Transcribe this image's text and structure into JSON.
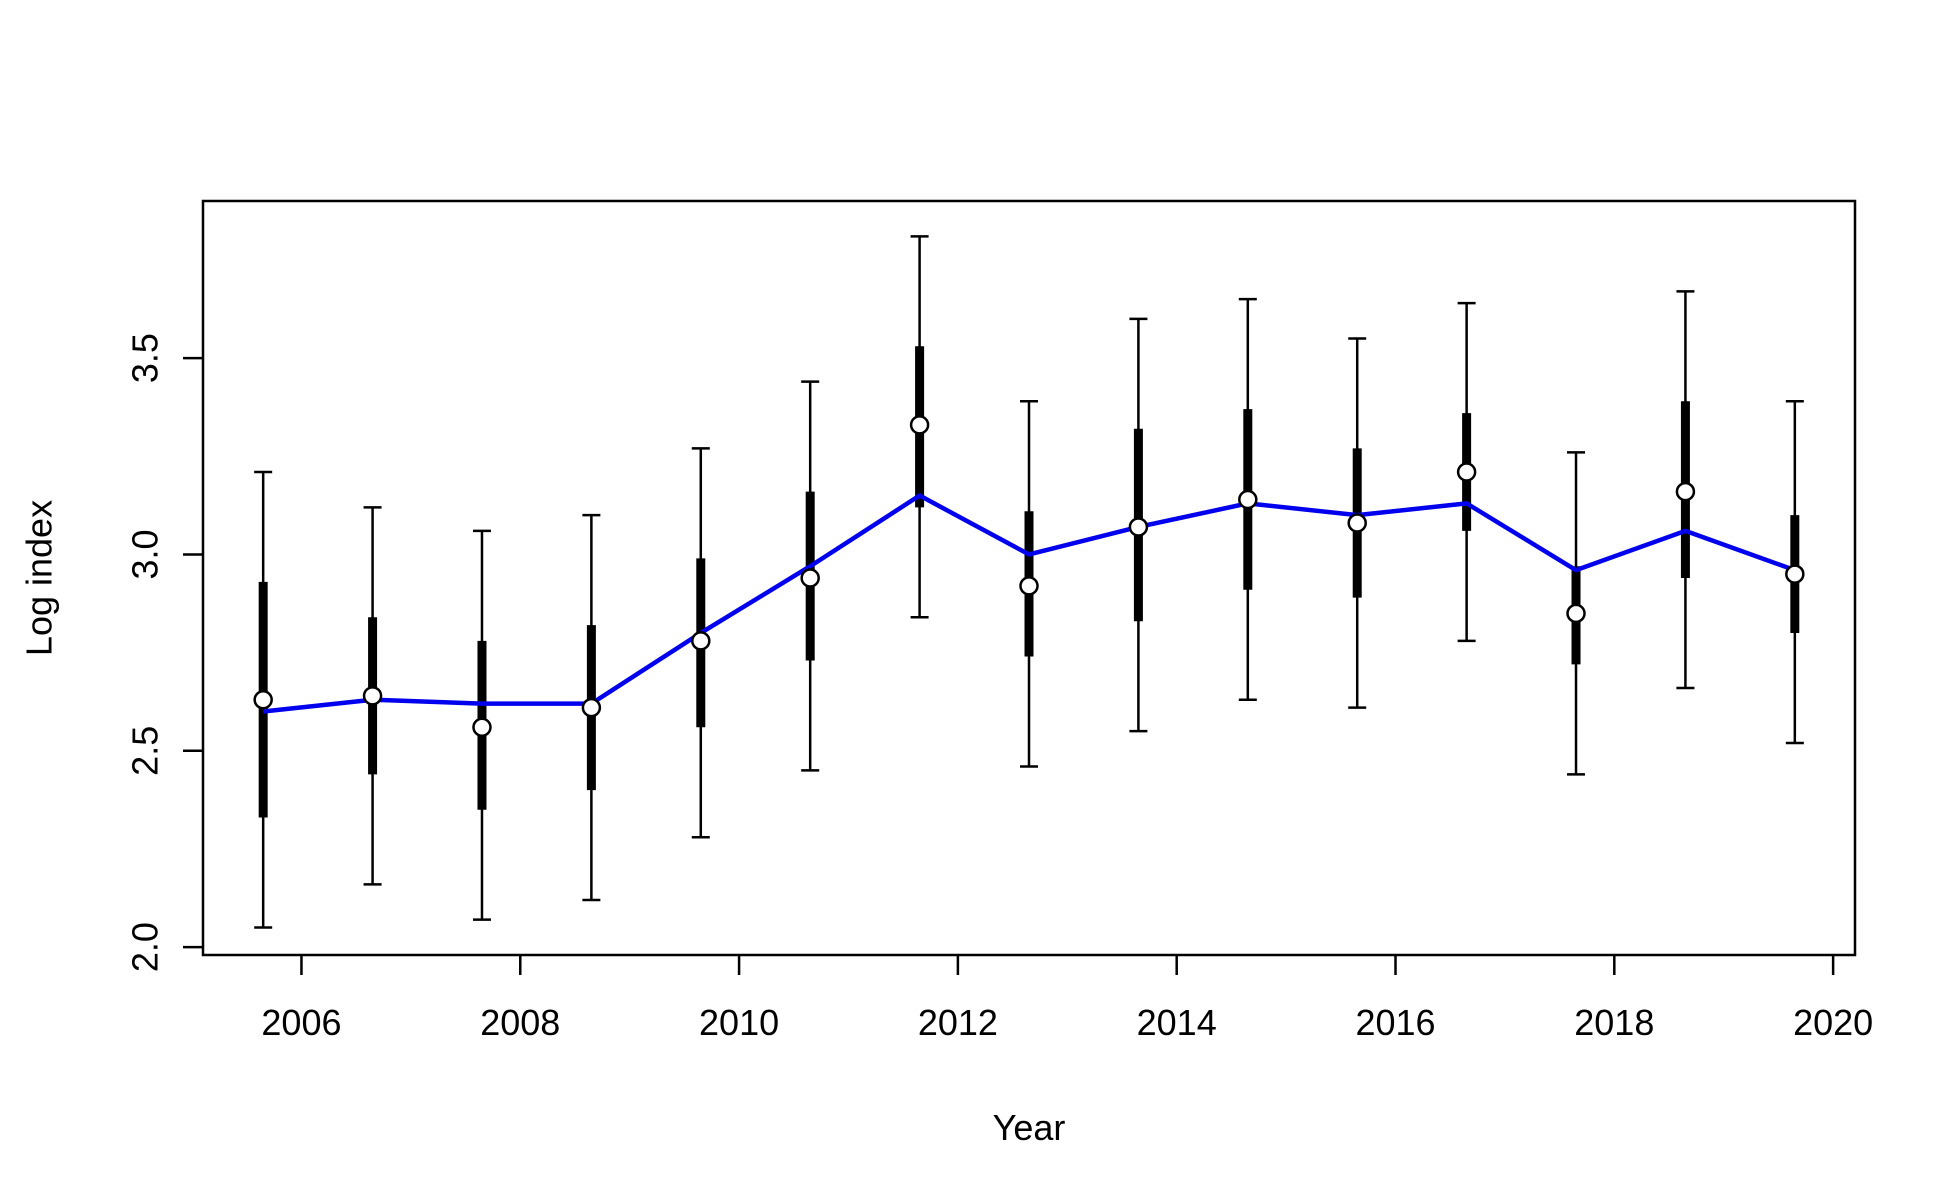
{
  "chart_data": {
    "type": "line",
    "title": "",
    "xlabel": "Year",
    "ylabel": "Log index",
    "xlim": [
      2005.1,
      2020.2
    ],
    "ylim": [
      1.98,
      3.9
    ],
    "x_ticks": [
      2006,
      2008,
      2010,
      2012,
      2014,
      2016,
      2018,
      2020
    ],
    "x_tick_labels": [
      "2006",
      "2008",
      "2010",
      "2012",
      "2014",
      "2016",
      "2018",
      "2020"
    ],
    "y_ticks": [
      2.0,
      2.5,
      3.0,
      3.5
    ],
    "y_tick_labels": [
      "2.0",
      "2.5",
      "3.0",
      "3.5"
    ],
    "grid": false,
    "legend": "none",
    "series": [
      {
        "kind": "observed_points_with_error_bars",
        "color": "#000000",
        "x": [
          2005.65,
          2006.65,
          2007.65,
          2008.65,
          2009.65,
          2010.65,
          2011.65,
          2012.65,
          2013.65,
          2014.65,
          2015.65,
          2016.65,
          2017.65,
          2018.65,
          2019.65
        ],
        "values": [
          2.63,
          2.64,
          2.56,
          2.61,
          2.78,
          2.94,
          3.33,
          2.92,
          3.07,
          3.14,
          3.08,
          3.21,
          2.85,
          3.16,
          2.95
        ],
        "inner_lower": [
          2.33,
          2.44,
          2.35,
          2.4,
          2.56,
          2.73,
          3.12,
          2.74,
          2.83,
          2.91,
          2.89,
          3.06,
          2.72,
          2.94,
          2.8
        ],
        "inner_upper": [
          2.93,
          2.84,
          2.78,
          2.82,
          2.99,
          3.16,
          3.53,
          3.11,
          3.32,
          3.37,
          3.27,
          3.36,
          2.97,
          3.39,
          3.1
        ],
        "outer_lower": [
          2.05,
          2.16,
          2.07,
          2.12,
          2.28,
          2.45,
          2.84,
          2.46,
          2.55,
          2.63,
          2.61,
          2.78,
          2.44,
          2.66,
          2.52
        ],
        "outer_upper": [
          3.21,
          3.12,
          3.06,
          3.1,
          3.27,
          3.44,
          3.81,
          3.39,
          3.6,
          3.65,
          3.55,
          3.64,
          3.26,
          3.67,
          3.39
        ]
      },
      {
        "kind": "fitted_line",
        "color": "#0000ee",
        "x": [
          2005.65,
          2006.65,
          2007.65,
          2008.65,
          2009.65,
          2010.65,
          2011.65,
          2012.65,
          2013.65,
          2014.65,
          2015.65,
          2016.65,
          2017.65,
          2018.65,
          2019.65
        ],
        "values": [
          2.6,
          2.63,
          2.62,
          2.62,
          2.8,
          2.97,
          3.15,
          3.0,
          3.07,
          3.13,
          3.1,
          3.13,
          2.96,
          3.06,
          2.96
        ]
      }
    ]
  }
}
